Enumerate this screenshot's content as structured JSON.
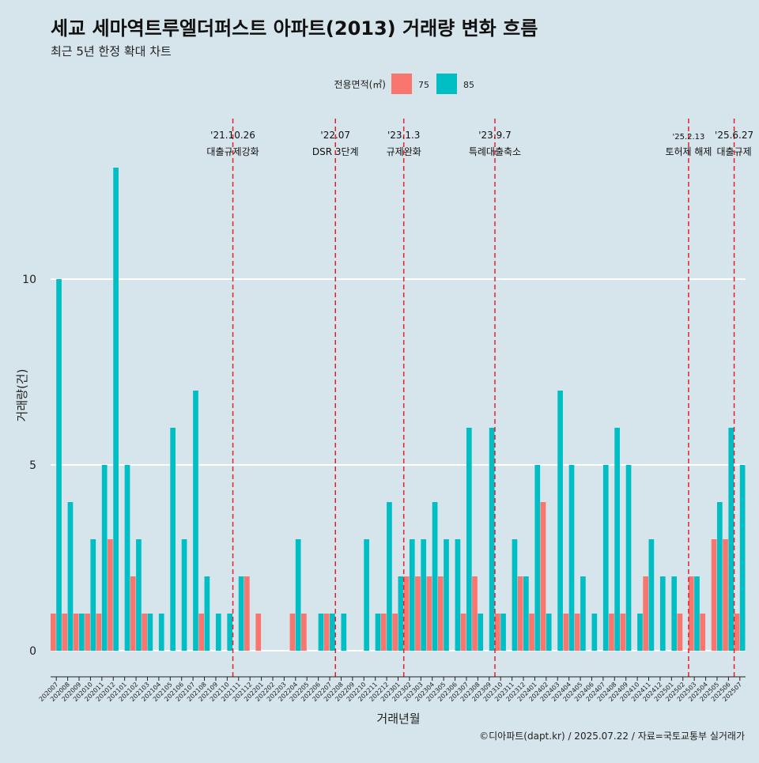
{
  "title": "세교 세마역트루엘더퍼스트 아파트(2013) 거래량 변화 흐름",
  "subtitle": "최근 5년 한정 확대 차트",
  "caption": "©디아파트(dapt.kr) / 2025.07.22 / 자료=국토교통부 실거래가",
  "colors": {
    "75": "#f8766d",
    "85": "#00bfc4",
    "background": "#d6e4eb",
    "grid": "#ffffff",
    "event_line": "#e8202a"
  },
  "chart_data": {
    "type": "bar",
    "title": "세교 세마역트루엘더퍼스트 아파트(2013) 거래량 변화 흐름",
    "xlabel": "거래년월",
    "ylabel": "거래량(건)",
    "ylim": [
      0,
      13
    ],
    "yticks": [
      0,
      5,
      10
    ],
    "grid": "horizontal",
    "legend": {
      "title": "전용면적(㎡)",
      "position": "top",
      "entries": [
        "75",
        "85"
      ]
    },
    "categories": [
      "202007",
      "202008",
      "202009",
      "202010",
      "202011",
      "202012",
      "202101",
      "202102",
      "202103",
      "202104",
      "202105",
      "202106",
      "202107",
      "202108",
      "202109",
      "202110",
      "202111",
      "202112",
      "202201",
      "202202",
      "202203",
      "202204",
      "202205",
      "202206",
      "202207",
      "202208",
      "202209",
      "202210",
      "202211",
      "202212",
      "202301",
      "202302",
      "202303",
      "202304",
      "202305",
      "202306",
      "202307",
      "202308",
      "202309",
      "202310",
      "202311",
      "202312",
      "202401",
      "202402",
      "202403",
      "202404",
      "202405",
      "202406",
      "202407",
      "202408",
      "202409",
      "202410",
      "202411",
      "202412",
      "202501",
      "202502",
      "202503",
      "202504",
      "202505",
      "202506",
      "202507"
    ],
    "series": [
      {
        "name": "75",
        "values": [
          1,
          1,
          1,
          1,
          1,
          3,
          0,
          2,
          1,
          0,
          0,
          0,
          0,
          1,
          0,
          0,
          0,
          2,
          1,
          0,
          0,
          1,
          1,
          0,
          1,
          0,
          0,
          0,
          0,
          1,
          1,
          2,
          2,
          2,
          2,
          0,
          1,
          2,
          0,
          1,
          0,
          2,
          1,
          4,
          0,
          1,
          1,
          0,
          0,
          1,
          1,
          0,
          2,
          0,
          0,
          1,
          2,
          1,
          3,
          3,
          1
        ]
      },
      {
        "name": "85",
        "values": [
          10,
          4,
          1,
          3,
          5,
          13,
          5,
          3,
          1,
          1,
          6,
          3,
          7,
          2,
          1,
          1,
          2,
          0,
          0,
          0,
          0,
          3,
          0,
          1,
          1,
          1,
          0,
          3,
          1,
          4,
          2,
          3,
          3,
          4,
          3,
          3,
          6,
          1,
          6,
          1,
          3,
          2,
          5,
          1,
          7,
          5,
          2,
          1,
          5,
          6,
          5,
          1,
          3,
          2,
          2,
          0,
          2,
          0,
          4,
          6,
          5
        ]
      }
    ],
    "events": [
      {
        "after": "202110",
        "date": "'21.10.26",
        "label": "대출규제강화"
      },
      {
        "after": "202207",
        "date": "'22.07",
        "label": "DSR 3단계"
      },
      {
        "after": "202301",
        "date": "'23.1.3",
        "label": "규제완화"
      },
      {
        "after": "202309",
        "date": "'23.9.7",
        "label": "특례대출축소"
      },
      {
        "after": "202502",
        "date": "'25.2.13",
        "label": "토허제 해제"
      },
      {
        "after": "202506",
        "date": "'25.6.27",
        "label": "대출규제"
      }
    ]
  }
}
